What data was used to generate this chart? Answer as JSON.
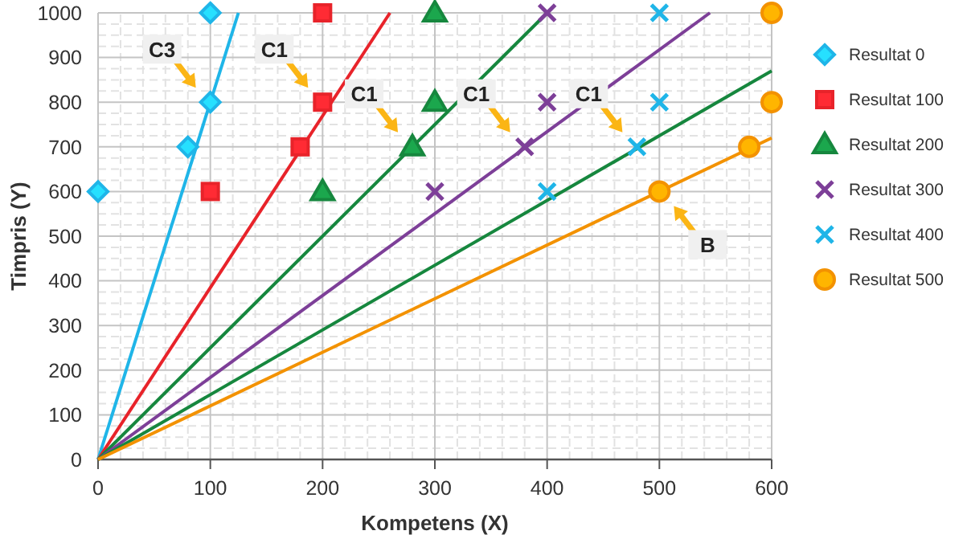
{
  "chart_data": {
    "type": "scatter",
    "xlabel": "Kompetens (X)",
    "ylabel": "Timpris (Y)",
    "xlim": [
      0,
      600
    ],
    "ylim": [
      0,
      1000
    ],
    "xticks": [
      0,
      100,
      200,
      300,
      400,
      500,
      600
    ],
    "yticks": [
      0,
      100,
      200,
      300,
      400,
      500,
      600,
      700,
      800,
      900,
      1000
    ],
    "grid": true,
    "legend": "right",
    "series": [
      {
        "type": "line",
        "color": "#1fb5e8",
        "x": [
          0,
          125
        ],
        "values": [
          0,
          1000
        ],
        "marker": "none"
      },
      {
        "type": "line",
        "color": "#e8232a",
        "x": [
          0,
          260
        ],
        "values": [
          0,
          1000
        ],
        "marker": "none"
      },
      {
        "type": "line",
        "color": "#16873e",
        "x": [
          0,
          400
        ],
        "values": [
          0,
          1000
        ],
        "marker": "none"
      },
      {
        "type": "line",
        "color": "#7d3f98",
        "x": [
          0,
          545
        ],
        "values": [
          0,
          1000
        ],
        "marker": "none"
      },
      {
        "type": "line",
        "color": "#16873e",
        "x": [
          0,
          600
        ],
        "values": [
          0,
          870
        ],
        "marker": "none"
      },
      {
        "type": "line",
        "color": "#f39200",
        "x": [
          0,
          600
        ],
        "values": [
          0,
          720
        ],
        "marker": "none"
      },
      {
        "name": "Resultat 0",
        "color": "#1fb5e8",
        "marker": "diamond",
        "x": [
          0,
          80,
          100,
          100
        ],
        "values": [
          600,
          700,
          800,
          1000
        ]
      },
      {
        "name": "Resultat 100",
        "color": "#e8232a",
        "marker": "square",
        "x": [
          100,
          180,
          200,
          200
        ],
        "values": [
          600,
          700,
          800,
          1000
        ]
      },
      {
        "name": "Resultat 200",
        "color": "#16873e",
        "marker": "triangle",
        "x": [
          200,
          280,
          300,
          300
        ],
        "values": [
          600,
          700,
          800,
          1000
        ]
      },
      {
        "name": "Resultat 300",
        "color": "#7d3f98",
        "marker": "cross",
        "x": [
          300,
          380,
          400,
          400
        ],
        "values": [
          600,
          700,
          800,
          1000
        ]
      },
      {
        "name": "Resultat 400",
        "color": "#1fb5e8",
        "marker": "cross",
        "x": [
          400,
          480,
          500,
          500
        ],
        "values": [
          600,
          700,
          800,
          1000
        ]
      },
      {
        "name": "Resultat 500",
        "color": "#f39200",
        "marker": "circle",
        "x": [
          500,
          580,
          600,
          600
        ],
        "values": [
          600,
          700,
          800,
          1000
        ]
      }
    ],
    "annotations": [
      {
        "text": "C3",
        "x": 100,
        "y": 800
      },
      {
        "text": "C1",
        "x": 200,
        "y": 800
      },
      {
        "text": "C1",
        "x": 280,
        "y": 700
      },
      {
        "text": "C1",
        "x": 380,
        "y": 700
      },
      {
        "text": "C1",
        "x": 480,
        "y": 700
      },
      {
        "text": "B",
        "x": 500,
        "y": 600
      }
    ]
  }
}
